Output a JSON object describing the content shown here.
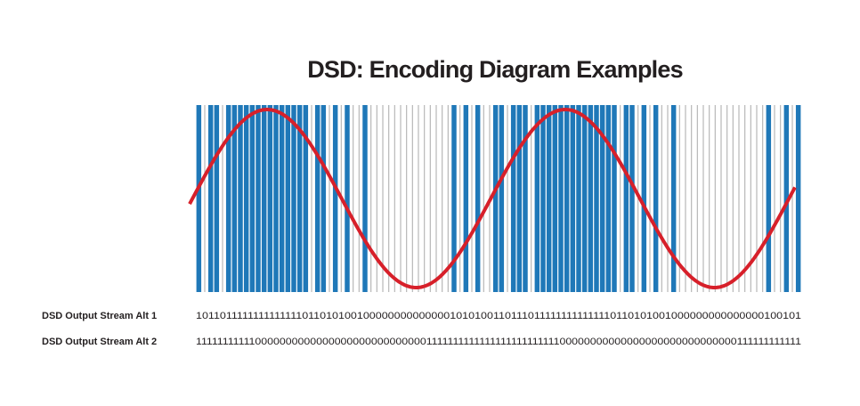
{
  "title": "DSD: Encoding Diagram Examples",
  "streams": [
    {
      "label": "DSD Output Stream Alt 1",
      "bits": "101101111111111111101101010010000000000000010101001101110111111111111110110101001000000000000000100101"
    },
    {
      "label": "DSD Output Stream Alt 2",
      "bits": "111111111110000000000000000000000000000111111111111111111111111100000000000000000000000000000111111111111"
    }
  ]
}
